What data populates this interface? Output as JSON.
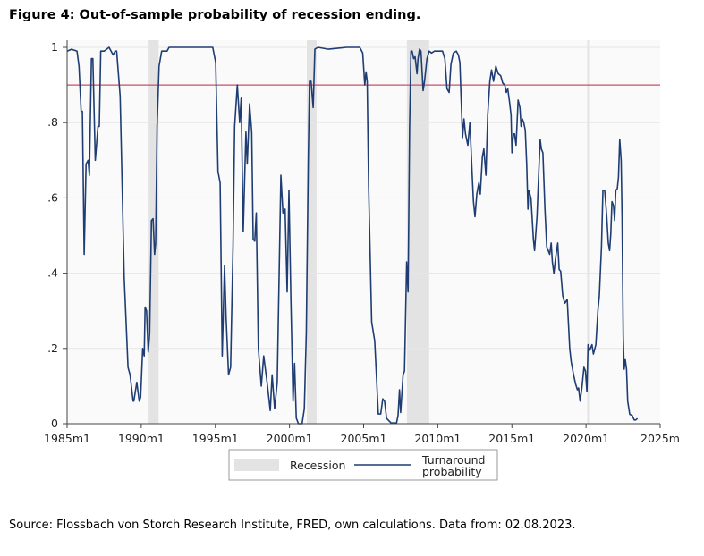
{
  "title": "Figure 4: Out-of-sample probability of recession ending.",
  "source": "Source: Flossbach von Storch Research Institute, FRED, own calculations. Data from: 02.08.2023.",
  "chart_data": {
    "type": "line",
    "title": "Figure 4: Out-of-sample probability of recession ending.",
    "xlabel": "",
    "ylabel": "",
    "xlim": [
      1985,
      2025
    ],
    "ylim": [
      0,
      1
    ],
    "grid": true,
    "legend_placement": "bottom",
    "x_ticks": [
      1985,
      1990,
      1995,
      2000,
      2005,
      2010,
      2015,
      2020,
      2025
    ],
    "x_tick_labels": [
      "1985m1",
      "1990m1",
      "1995m1",
      "2000m1",
      "2005m1",
      "2010m1",
      "2015m1",
      "2020m1",
      "2025m"
    ],
    "y_ticks": [
      0,
      0.2,
      0.4,
      0.6,
      0.8,
      1
    ],
    "y_tick_labels": [
      "0",
      ".2",
      ".4",
      ".6",
      ".8",
      "1"
    ],
    "threshold": {
      "value": 0.9,
      "color": "#c8506a"
    },
    "recessions": {
      "name": "Recession",
      "color": "#e3e3e3",
      "periods": [
        [
          1990.5,
          1991.17
        ],
        [
          2001.17,
          2001.83
        ],
        [
          2007.92,
          2009.42
        ],
        [
          2020.08,
          2020.25
        ]
      ]
    },
    "series": [
      {
        "name": "Turnaround probability",
        "color": "#1f3d73",
        "points": [
          [
            1985.0,
            0.99
          ],
          [
            1985.3,
            0.995
          ],
          [
            1985.67,
            0.99
          ],
          [
            1985.8,
            0.95
          ],
          [
            1985.95,
            0.83
          ],
          [
            1986.03,
            0.83
          ],
          [
            1986.15,
            0.45
          ],
          [
            1986.28,
            0.69
          ],
          [
            1986.42,
            0.7
          ],
          [
            1986.5,
            0.66
          ],
          [
            1986.64,
            0.97
          ],
          [
            1986.74,
            0.97
          ],
          [
            1986.9,
            0.7
          ],
          [
            1987.08,
            0.79
          ],
          [
            1987.17,
            0.79
          ],
          [
            1987.27,
            0.99
          ],
          [
            1987.5,
            0.99
          ],
          [
            1987.83,
            1.0
          ],
          [
            1988.1,
            0.98
          ],
          [
            1988.24,
            0.99
          ],
          [
            1988.34,
            0.99
          ],
          [
            1988.58,
            0.87
          ],
          [
            1988.85,
            0.39
          ],
          [
            1989.11,
            0.15
          ],
          [
            1989.25,
            0.13
          ],
          [
            1989.45,
            0.06
          ],
          [
            1989.5,
            0.06
          ],
          [
            1989.7,
            0.11
          ],
          [
            1989.86,
            0.06
          ],
          [
            1989.96,
            0.07
          ],
          [
            1990.1,
            0.2
          ],
          [
            1990.2,
            0.18
          ],
          [
            1990.26,
            0.31
          ],
          [
            1990.36,
            0.3
          ],
          [
            1990.47,
            0.19
          ],
          [
            1990.57,
            0.24
          ],
          [
            1990.69,
            0.54
          ],
          [
            1990.8,
            0.545
          ],
          [
            1990.9,
            0.45
          ],
          [
            1990.97,
            0.48
          ],
          [
            1991.07,
            0.79
          ],
          [
            1991.2,
            0.95
          ],
          [
            1991.38,
            0.99
          ],
          [
            1991.58,
            0.99
          ],
          [
            1991.74,
            0.99
          ],
          [
            1991.88,
            1.0
          ],
          [
            1993.6,
            1.0
          ],
          [
            1994.82,
            1.0
          ],
          [
            1995.02,
            0.96
          ],
          [
            1995.18,
            0.67
          ],
          [
            1995.32,
            0.64
          ],
          [
            1995.46,
            0.18
          ],
          [
            1995.62,
            0.42
          ],
          [
            1995.73,
            0.28
          ],
          [
            1995.89,
            0.13
          ],
          [
            1996.03,
            0.15
          ],
          [
            1996.19,
            0.47
          ],
          [
            1996.3,
            0.79
          ],
          [
            1996.48,
            0.9
          ],
          [
            1996.64,
            0.8
          ],
          [
            1996.74,
            0.865
          ],
          [
            1996.88,
            0.51
          ],
          [
            1997.06,
            0.775
          ],
          [
            1997.15,
            0.69
          ],
          [
            1997.31,
            0.85
          ],
          [
            1997.45,
            0.775
          ],
          [
            1997.55,
            0.49
          ],
          [
            1997.66,
            0.485
          ],
          [
            1997.76,
            0.56
          ],
          [
            1997.9,
            0.2
          ],
          [
            1998.1,
            0.1
          ],
          [
            1998.26,
            0.18
          ],
          [
            1998.5,
            0.105
          ],
          [
            1998.7,
            0.035
          ],
          [
            1998.83,
            0.13
          ],
          [
            1999.0,
            0.04
          ],
          [
            1999.17,
            0.11
          ],
          [
            1999.42,
            0.66
          ],
          [
            1999.56,
            0.56
          ],
          [
            1999.7,
            0.57
          ],
          [
            1999.84,
            0.35
          ],
          [
            1999.96,
            0.62
          ],
          [
            2000.1,
            0.315
          ],
          [
            2000.24,
            0.06
          ],
          [
            2000.34,
            0.16
          ],
          [
            2000.46,
            0.015
          ],
          [
            2000.6,
            0.0
          ],
          [
            2000.85,
            0.0
          ],
          [
            2001.0,
            0.04
          ],
          [
            2001.13,
            0.24
          ],
          [
            2001.27,
            0.71
          ],
          [
            2001.35,
            0.91
          ],
          [
            2001.45,
            0.91
          ],
          [
            2001.6,
            0.84
          ],
          [
            2001.71,
            0.995
          ],
          [
            2001.92,
            1.0
          ],
          [
            2002.62,
            0.995
          ],
          [
            2003.83,
            1.0
          ],
          [
            2004.74,
            1.0
          ],
          [
            2004.94,
            0.985
          ],
          [
            2005.08,
            0.9
          ],
          [
            2005.16,
            0.935
          ],
          [
            2005.24,
            0.91
          ],
          [
            2005.34,
            0.63
          ],
          [
            2005.54,
            0.27
          ],
          [
            2005.75,
            0.22
          ],
          [
            2005.99,
            0.026
          ],
          [
            2006.15,
            0.026
          ],
          [
            2006.29,
            0.066
          ],
          [
            2006.41,
            0.06
          ],
          [
            2006.55,
            0.014
          ],
          [
            2006.85,
            0.002
          ],
          [
            2007.22,
            0.002
          ],
          [
            2007.32,
            0.022
          ],
          [
            2007.42,
            0.09
          ],
          [
            2007.5,
            0.03
          ],
          [
            2007.66,
            0.13
          ],
          [
            2007.76,
            0.14
          ],
          [
            2007.9,
            0.43
          ],
          [
            2008.0,
            0.35
          ],
          [
            2008.1,
            0.79
          ],
          [
            2008.19,
            0.99
          ],
          [
            2008.27,
            0.99
          ],
          [
            2008.37,
            0.97
          ],
          [
            2008.47,
            0.975
          ],
          [
            2008.6,
            0.93
          ],
          [
            2008.67,
            0.97
          ],
          [
            2008.77,
            0.995
          ],
          [
            2008.87,
            0.99
          ],
          [
            2009.01,
            0.885
          ],
          [
            2009.11,
            0.91
          ],
          [
            2009.27,
            0.97
          ],
          [
            2009.42,
            0.99
          ],
          [
            2009.58,
            0.985
          ],
          [
            2009.78,
            0.99
          ],
          [
            2010.04,
            0.99
          ],
          [
            2010.18,
            0.99
          ],
          [
            2010.32,
            0.99
          ],
          [
            2010.48,
            0.97
          ],
          [
            2010.62,
            0.89
          ],
          [
            2010.77,
            0.88
          ],
          [
            2010.89,
            0.955
          ],
          [
            2011.05,
            0.985
          ],
          [
            2011.25,
            0.99
          ],
          [
            2011.39,
            0.98
          ],
          [
            2011.49,
            0.96
          ],
          [
            2011.57,
            0.87
          ],
          [
            2011.67,
            0.76
          ],
          [
            2011.77,
            0.81
          ],
          [
            2011.87,
            0.77
          ],
          [
            2012.03,
            0.74
          ],
          [
            2012.17,
            0.8
          ],
          [
            2012.31,
            0.67
          ],
          [
            2012.41,
            0.59
          ],
          [
            2012.51,
            0.55
          ],
          [
            2012.63,
            0.61
          ],
          [
            2012.77,
            0.64
          ],
          [
            2012.87,
            0.61
          ],
          [
            2013.01,
            0.71
          ],
          [
            2013.11,
            0.73
          ],
          [
            2013.25,
            0.66
          ],
          [
            2013.37,
            0.82
          ],
          [
            2013.51,
            0.91
          ],
          [
            2013.63,
            0.94
          ],
          [
            2013.76,
            0.91
          ],
          [
            2013.92,
            0.95
          ],
          [
            2014.08,
            0.93
          ],
          [
            2014.24,
            0.925
          ],
          [
            2014.38,
            0.905
          ],
          [
            2014.52,
            0.9
          ],
          [
            2014.62,
            0.88
          ],
          [
            2014.72,
            0.89
          ],
          [
            2014.84,
            0.855
          ],
          [
            2014.94,
            0.82
          ],
          [
            2015.0,
            0.72
          ],
          [
            2015.1,
            0.77
          ],
          [
            2015.18,
            0.77
          ],
          [
            2015.28,
            0.74
          ],
          [
            2015.42,
            0.86
          ],
          [
            2015.54,
            0.84
          ],
          [
            2015.62,
            0.79
          ],
          [
            2015.7,
            0.81
          ],
          [
            2015.8,
            0.8
          ],
          [
            2015.9,
            0.78
          ],
          [
            2016.0,
            0.69
          ],
          [
            2016.08,
            0.57
          ],
          [
            2016.14,
            0.62
          ],
          [
            2016.29,
            0.6
          ],
          [
            2016.45,
            0.49
          ],
          [
            2016.53,
            0.46
          ],
          [
            2016.69,
            0.55
          ],
          [
            2016.81,
            0.67
          ],
          [
            2016.91,
            0.755
          ],
          [
            2016.99,
            0.73
          ],
          [
            2017.09,
            0.72
          ],
          [
            2017.23,
            0.57
          ],
          [
            2017.35,
            0.47
          ],
          [
            2017.45,
            0.46
          ],
          [
            2017.55,
            0.45
          ],
          [
            2017.65,
            0.48
          ],
          [
            2017.73,
            0.43
          ],
          [
            2017.83,
            0.4
          ],
          [
            2017.95,
            0.44
          ],
          [
            2018.09,
            0.48
          ],
          [
            2018.19,
            0.41
          ],
          [
            2018.29,
            0.405
          ],
          [
            2018.43,
            0.34
          ],
          [
            2018.57,
            0.32
          ],
          [
            2018.73,
            0.33
          ],
          [
            2018.9,
            0.2
          ],
          [
            2019.0,
            0.165
          ],
          [
            2019.16,
            0.13
          ],
          [
            2019.3,
            0.105
          ],
          [
            2019.42,
            0.09
          ],
          [
            2019.5,
            0.095
          ],
          [
            2019.6,
            0.06
          ],
          [
            2019.72,
            0.095
          ],
          [
            2019.86,
            0.15
          ],
          [
            2019.96,
            0.14
          ],
          [
            2020.06,
            0.085
          ],
          [
            2020.14,
            0.21
          ],
          [
            2020.24,
            0.195
          ],
          [
            2020.4,
            0.21
          ],
          [
            2020.5,
            0.185
          ],
          [
            2020.66,
            0.21
          ],
          [
            2020.8,
            0.3
          ],
          [
            2020.9,
            0.34
          ],
          [
            2021.04,
            0.47
          ],
          [
            2021.14,
            0.62
          ],
          [
            2021.26,
            0.62
          ],
          [
            2021.4,
            0.55
          ],
          [
            2021.5,
            0.48
          ],
          [
            2021.59,
            0.46
          ],
          [
            2021.67,
            0.505
          ],
          [
            2021.75,
            0.59
          ],
          [
            2021.85,
            0.58
          ],
          [
            2021.93,
            0.54
          ],
          [
            2022.01,
            0.62
          ],
          [
            2022.11,
            0.625
          ],
          [
            2022.19,
            0.655
          ],
          [
            2022.27,
            0.755
          ],
          [
            2022.37,
            0.7
          ],
          [
            2022.43,
            0.55
          ],
          [
            2022.51,
            0.235
          ],
          [
            2022.57,
            0.145
          ],
          [
            2022.65,
            0.17
          ],
          [
            2022.73,
            0.145
          ],
          [
            2022.81,
            0.06
          ],
          [
            2022.95,
            0.025
          ],
          [
            2023.11,
            0.022
          ],
          [
            2023.25,
            0.01
          ],
          [
            2023.35,
            0.01
          ],
          [
            2023.47,
            0.014
          ]
        ]
      }
    ],
    "legend": [
      "Recession",
      "Turnaround probability"
    ]
  },
  "legend": {
    "recession_label": "Recession",
    "series_label_line1": "Turnaround",
    "series_label_line2": "probability"
  }
}
